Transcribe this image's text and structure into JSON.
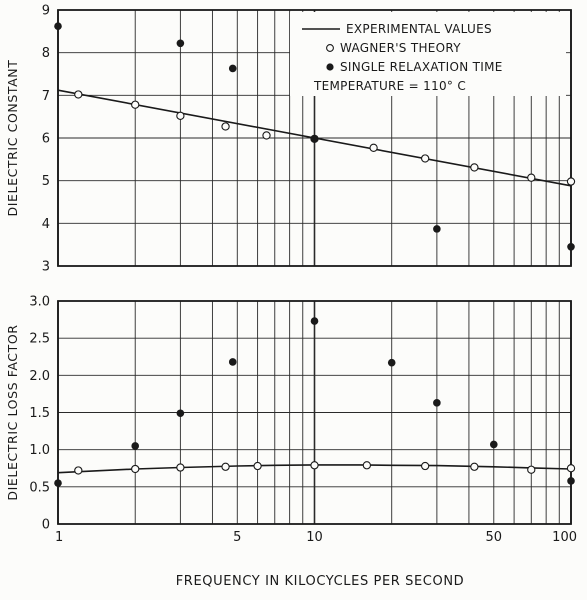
{
  "colors": {
    "ink": "#1a1a1a",
    "grid": "#2a2a2a",
    "paper": "#fcfcfa"
  },
  "shared_xlabel": "FREQUENCY IN KILOCYCLES PER SECOND",
  "x_tick_labels": [
    "1",
    "5",
    "10",
    "50",
    "100"
  ],
  "chart_data": [
    {
      "type": "line",
      "id": "dielectric-constant",
      "title": "",
      "xlabel": "",
      "ylabel": "DIELECTRIC CONSTANT",
      "xscale": "log",
      "xlim": [
        1,
        100
      ],
      "ylim": [
        3,
        9
      ],
      "y_ticks": [
        3,
        4,
        5,
        6,
        7,
        8,
        9
      ],
      "y_tick_labels": [
        "3",
        "4",
        "5",
        "6",
        "7",
        "8",
        "9"
      ],
      "grid": true,
      "legend": {
        "placement": "top-right",
        "entries": [
          {
            "marker": "line",
            "label": "EXPERIMENTAL VALUES"
          },
          {
            "marker": "open-circle",
            "label": "WAGNER'S THEORY"
          },
          {
            "marker": "filled-circle",
            "label": "SINGLE RELAXATION TIME"
          }
        ],
        "note": "TEMPERATURE = 110° C"
      },
      "series": [
        {
          "name": "EXPERIMENTAL VALUES",
          "style": "line",
          "x": [
            1,
            100
          ],
          "y": [
            7.12,
            4.88
          ]
        },
        {
          "name": "WAGNER'S THEORY",
          "style": "open-circle",
          "x": [
            1.2,
            2,
            3,
            4.5,
            6.5,
            10,
            17,
            27,
            42,
            70,
            100
          ],
          "y": [
            7.02,
            6.78,
            6.52,
            6.27,
            6.06,
            5.98,
            5.77,
            5.52,
            5.31,
            5.07,
            4.98
          ]
        },
        {
          "name": "SINGLE RELAXATION TIME",
          "style": "filled-circle",
          "x": [
            1,
            3,
            4.8,
            10,
            30,
            100
          ],
          "y": [
            8.62,
            8.22,
            7.63,
            5.98,
            3.87,
            3.45
          ]
        }
      ]
    },
    {
      "type": "line",
      "id": "dielectric-loss-factor",
      "title": "",
      "xlabel": "FREQUENCY IN KILOCYCLES PER SECOND",
      "ylabel": "DIELECTRIC LOSS FACTOR",
      "xscale": "log",
      "xlim": [
        1,
        100
      ],
      "ylim": [
        0,
        3.0
      ],
      "y_ticks": [
        0,
        0.5,
        1.0,
        1.5,
        2.0,
        2.5,
        3.0
      ],
      "y_tick_labels": [
        "0",
        "0.5",
        "1.0",
        "1.5",
        "2.0",
        "2.5",
        "3.0"
      ],
      "grid": true,
      "series": [
        {
          "name": "EXPERIMENTAL VALUES",
          "style": "line",
          "x": [
            1,
            2,
            3,
            5,
            7,
            10,
            15,
            20,
            30,
            50,
            70,
            100
          ],
          "y": [
            0.69,
            0.74,
            0.76,
            0.78,
            0.79,
            0.795,
            0.795,
            0.79,
            0.785,
            0.77,
            0.755,
            0.74
          ]
        },
        {
          "name": "WAGNER'S THEORY",
          "style": "open-circle",
          "x": [
            1.2,
            2,
            3,
            4.5,
            6,
            10,
            16,
            27,
            42,
            70,
            100
          ],
          "y": [
            0.72,
            0.74,
            0.76,
            0.77,
            0.78,
            0.79,
            0.79,
            0.78,
            0.77,
            0.73,
            0.75
          ]
        },
        {
          "name": "SINGLE RELAXATION TIME",
          "style": "filled-circle",
          "x": [
            1,
            2,
            3,
            4.8,
            10,
            20,
            30,
            50,
            100
          ],
          "y": [
            0.55,
            1.05,
            1.49,
            2.18,
            2.73,
            2.17,
            1.63,
            1.07,
            0.58
          ]
        }
      ]
    }
  ]
}
